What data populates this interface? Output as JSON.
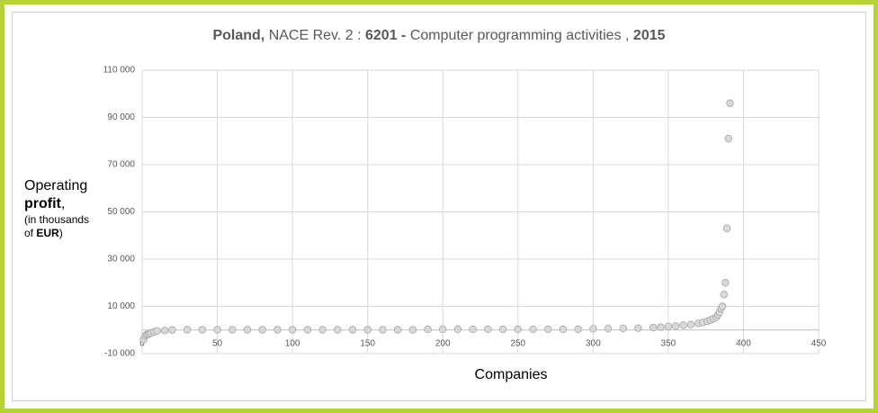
{
  "chart_data": {
    "type": "scatter",
    "title_parts": [
      {
        "text": "Poland,",
        "bold": true
      },
      {
        "text": "NACE Rev. 2 :",
        "bold": false
      },
      {
        "text": "6201 -",
        "bold": true
      },
      {
        "text": "Computer programming activities ,",
        "bold": false
      },
      {
        "text": "2015",
        "bold": true
      }
    ],
    "y_label_lines": [
      {
        "size": "large",
        "parts": [
          {
            "text": "Operating",
            "bold": false
          }
        ]
      },
      {
        "size": "large",
        "parts": [
          {
            "text": "profit",
            "bold": true
          },
          {
            "text": ",",
            "bold": false
          }
        ]
      },
      {
        "size": "small",
        "parts": [
          {
            "text": "(in thousands",
            "bold": false
          }
        ]
      },
      {
        "size": "small",
        "parts": [
          {
            "text": "of ",
            "bold": false
          },
          {
            "text": "EUR",
            "bold": true
          },
          {
            "text": ")",
            "bold": false
          }
        ]
      }
    ],
    "x_label": "Companies",
    "color": "#d9d9d9",
    "grid": true,
    "x": [
      1,
      2,
      3,
      4,
      5,
      6,
      8,
      10,
      15,
      20,
      30,
      40,
      50,
      60,
      70,
      80,
      90,
      100,
      110,
      120,
      130,
      140,
      150,
      160,
      170,
      180,
      190,
      200,
      210,
      220,
      230,
      240,
      250,
      260,
      270,
      280,
      290,
      300,
      310,
      320,
      330,
      340,
      345,
      350,
      355,
      360,
      365,
      370,
      373,
      376,
      378,
      380,
      382,
      383,
      384,
      385,
      386,
      387,
      388,
      389,
      390,
      391
    ],
    "values": [
      -4000,
      -2500,
      -2000,
      -1800,
      -1500,
      -1200,
      -800,
      -400,
      -200,
      0,
      100,
      100,
      100,
      100,
      100,
      100,
      100,
      100,
      100,
      100,
      100,
      100,
      100,
      100,
      100,
      100,
      300,
      300,
      300,
      300,
      300,
      300,
      300,
      300,
      300,
      300,
      300,
      500,
      600,
      700,
      800,
      1000,
      1200,
      1500,
      1700,
      2000,
      2300,
      2800,
      3200,
      3700,
      4200,
      4800,
      5500,
      6500,
      7500,
      9000,
      10000,
      15000,
      20000,
      43000,
      81000,
      96000
    ],
    "xlim": [
      0,
      450
    ],
    "xticks": [
      0,
      50,
      100,
      150,
      200,
      250,
      300,
      350,
      400,
      450
    ],
    "ylim": [
      -10000,
      110000
    ],
    "yticks": [
      {
        "value": -10000,
        "label": "-10 000"
      },
      {
        "value": 10000,
        "label": "10 000"
      },
      {
        "value": 30000,
        "label": "30 000"
      },
      {
        "value": 50000,
        "label": "50 000"
      },
      {
        "value": 70000,
        "label": "70 000"
      },
      {
        "value": 90000,
        "label": "90 000"
      },
      {
        "value": 110000,
        "label": "110 000"
      }
    ]
  }
}
